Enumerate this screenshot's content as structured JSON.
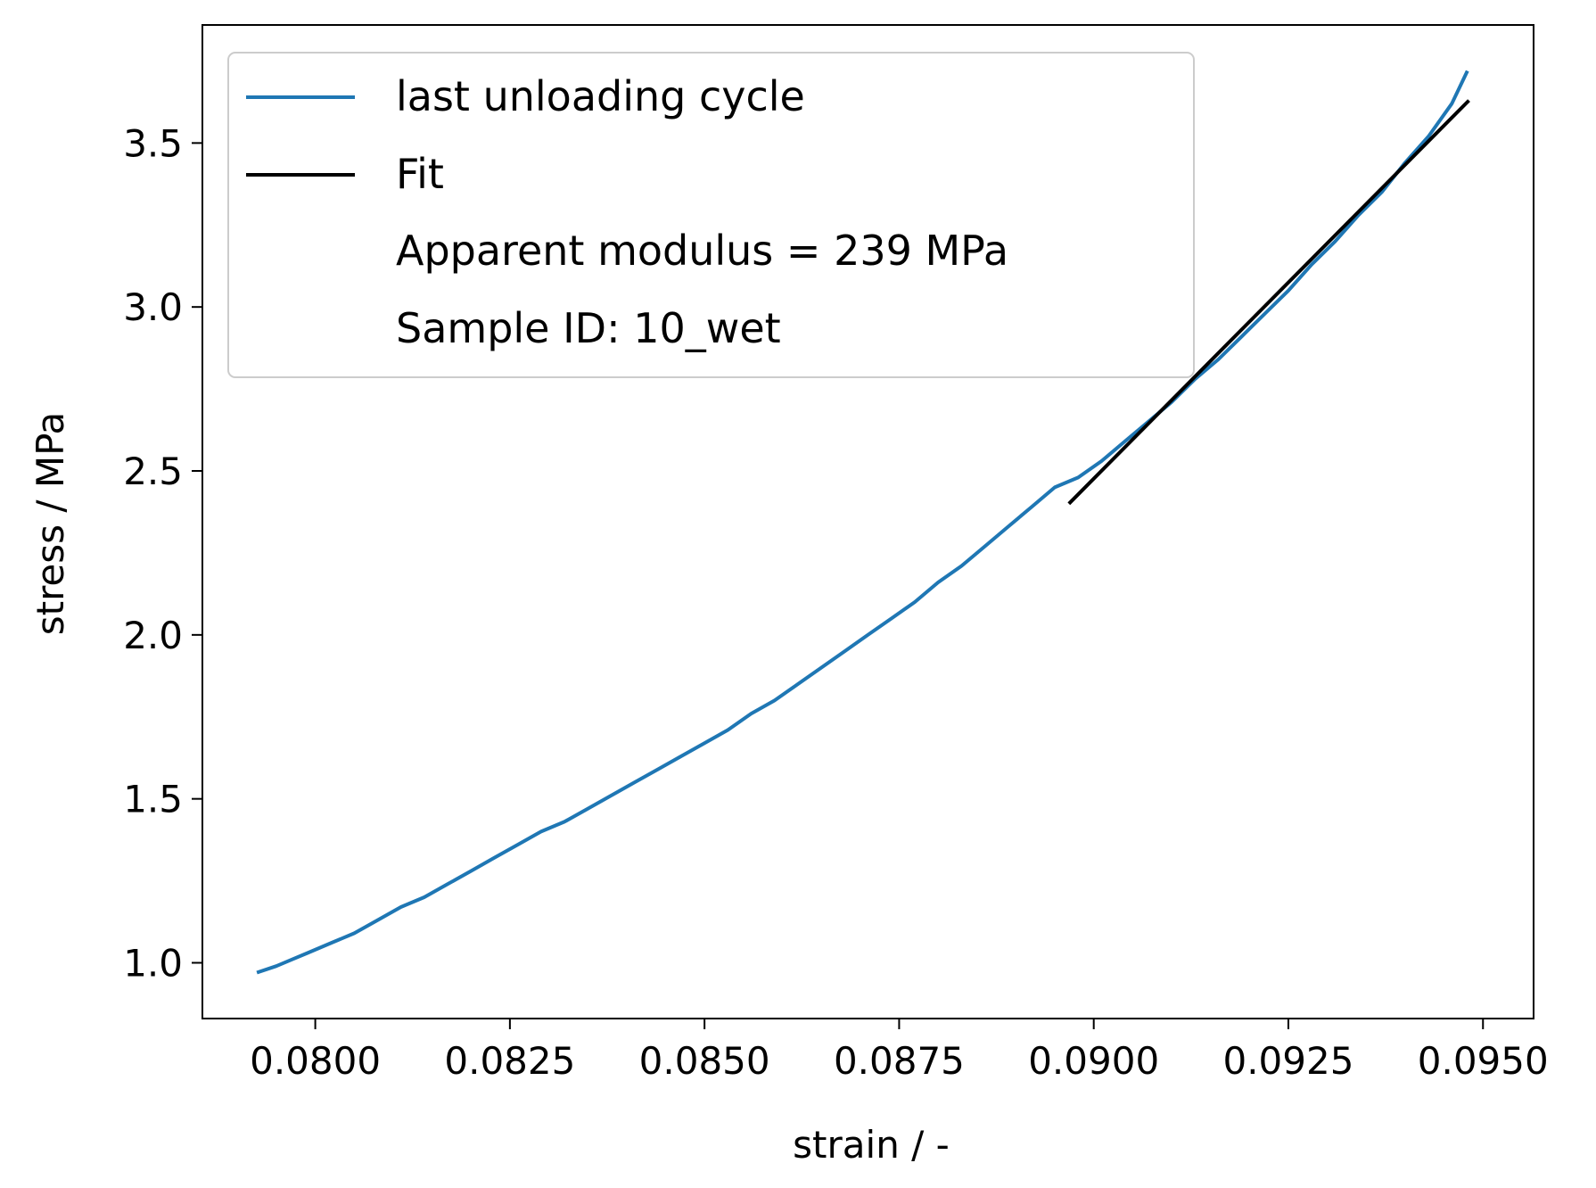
{
  "colors": {
    "series_unloading": "#1f77b4",
    "series_fit": "#000000",
    "axes": "#000000",
    "background": "#ffffff"
  },
  "chart_data": {
    "type": "line",
    "title": "",
    "xlabel": "strain / -",
    "ylabel": "stress / MPa",
    "xlim": [
      0.07855,
      0.09565
    ],
    "ylim": [
      0.83,
      3.86
    ],
    "xticks": [
      0.08,
      0.0825,
      0.085,
      0.0875,
      0.09,
      0.0925,
      0.095
    ],
    "xtick_labels": [
      "0.0800",
      "0.0825",
      "0.0850",
      "0.0875",
      "0.0900",
      "0.0925",
      "0.0950"
    ],
    "yticks": [
      1.0,
      1.5,
      2.0,
      2.5,
      3.0,
      3.5
    ],
    "ytick_labels": [
      "1.0",
      "1.5",
      "2.0",
      "2.5",
      "3.0",
      "3.5"
    ],
    "grid": false,
    "legend_position": "upper-left",
    "legend_entries": [
      "last unloading cycle",
      "Fit",
      "Apparent modulus = 239 MPa",
      "Sample ID: 10_wet"
    ],
    "series": [
      {
        "name": "last unloading cycle",
        "style": "line",
        "x": [
          0.07925,
          0.0795,
          0.0797,
          0.0799,
          0.0802,
          0.0805,
          0.0808,
          0.0811,
          0.0814,
          0.0817,
          0.082,
          0.0823,
          0.0826,
          0.0829,
          0.0832,
          0.0835,
          0.0838,
          0.0841,
          0.0844,
          0.0847,
          0.085,
          0.0853,
          0.0856,
          0.0859,
          0.0862,
          0.0865,
          0.0868,
          0.0871,
          0.0874,
          0.0877,
          0.088,
          0.0883,
          0.0886,
          0.0889,
          0.0892,
          0.0895,
          0.0898,
          0.0901,
          0.0904,
          0.0907,
          0.091,
          0.0913,
          0.0916,
          0.0919,
          0.0922,
          0.0925,
          0.0928,
          0.0931,
          0.0934,
          0.0937,
          0.094,
          0.0943,
          0.0946,
          0.0948
        ],
        "y": [
          0.97,
          0.99,
          1.01,
          1.03,
          1.06,
          1.09,
          1.13,
          1.17,
          1.2,
          1.24,
          1.28,
          1.32,
          1.36,
          1.4,
          1.43,
          1.47,
          1.51,
          1.55,
          1.59,
          1.63,
          1.67,
          1.71,
          1.76,
          1.8,
          1.85,
          1.9,
          1.95,
          2.0,
          2.05,
          2.1,
          2.16,
          2.21,
          2.27,
          2.33,
          2.39,
          2.45,
          2.48,
          2.53,
          2.59,
          2.65,
          2.71,
          2.78,
          2.84,
          2.91,
          2.98,
          3.05,
          3.13,
          3.2,
          3.28,
          3.35,
          3.44,
          3.52,
          3.62,
          3.72
        ]
      },
      {
        "name": "Fit",
        "style": "line",
        "x": [
          0.08968,
          0.09482
        ],
        "y": [
          2.4,
          3.63
        ]
      }
    ]
  }
}
